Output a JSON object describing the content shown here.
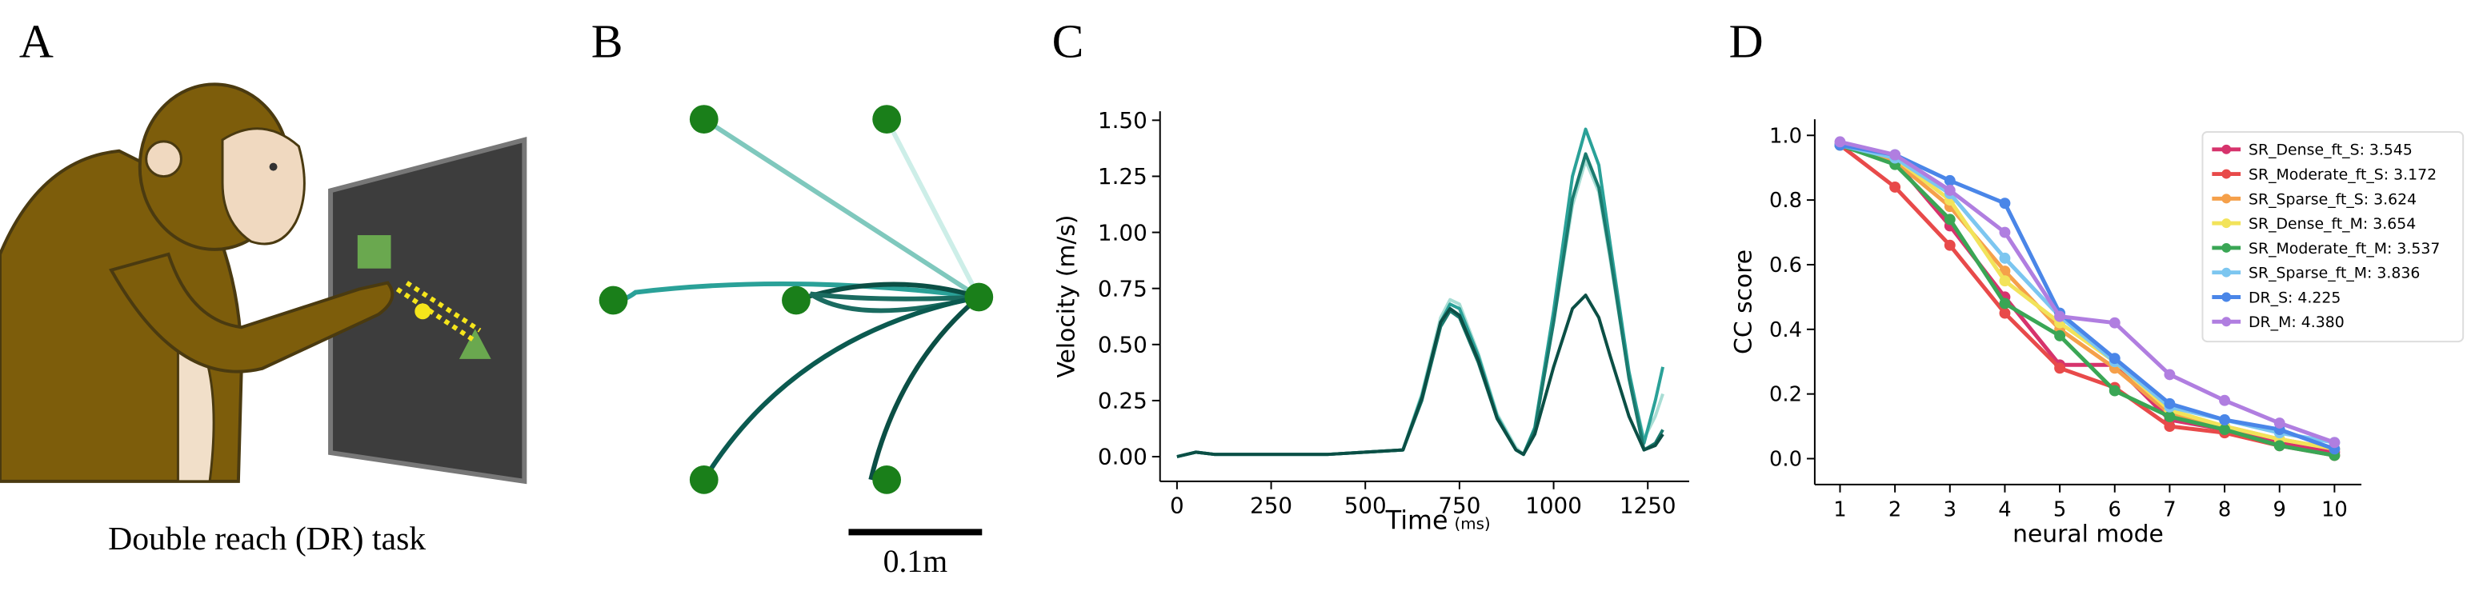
{
  "panel_labels": [
    "A",
    "B",
    "C",
    "D"
  ],
  "panel_a": {
    "caption": "Double reach (DR) task"
  },
  "panel_b": {
    "scale_label": "0.1m"
  },
  "chart_data": [
    {
      "type": "line",
      "xlabel": "Time",
      "xlabel_unit": "(ms)",
      "ylabel": "Velocity (m/s)",
      "x": [
        0,
        50,
        100,
        200,
        300,
        400,
        500,
        600,
        650,
        700,
        725,
        750,
        800,
        850,
        900,
        920,
        950,
        1000,
        1050,
        1085,
        1120,
        1150,
        1200,
        1240,
        1270,
        1290
      ],
      "xlim": [
        -45,
        1360
      ],
      "xticks": [
        0,
        250,
        500,
        750,
        1000,
        1250
      ],
      "ylim": [
        -0.11,
        1.54
      ],
      "yticks": [
        {
          "value": 0,
          "label": "0.00"
        },
        {
          "value": 0.25,
          "label": "0.25"
        },
        {
          "value": 0.5,
          "label": "0.50"
        },
        {
          "value": 0.75,
          "label": "0.75"
        },
        {
          "value": 1,
          "label": "1.00"
        },
        {
          "value": 1.25,
          "label": "1.25"
        },
        {
          "value": 1.5,
          "label": "1.50"
        }
      ],
      "marker": false,
      "series": [
        {
          "color": "#a8ddd4",
          "values": [
            0,
            0.02,
            0.01,
            0.01,
            0.01,
            0.01,
            0.02,
            0.03,
            0.28,
            0.62,
            0.7,
            0.68,
            0.46,
            0.19,
            0.04,
            0.01,
            0.12,
            0.6,
            1.12,
            1.32,
            1.18,
            0.88,
            0.36,
            0.08,
            0.18,
            0.28
          ]
        },
        {
          "color": "#2aa198",
          "values": [
            0,
            0.02,
            0.01,
            0.01,
            0.01,
            0.01,
            0.02,
            0.03,
            0.27,
            0.6,
            0.68,
            0.66,
            0.45,
            0.18,
            0.03,
            0.01,
            0.13,
            0.65,
            1.25,
            1.46,
            1.3,
            0.95,
            0.38,
            0.06,
            0.25,
            0.4
          ]
        },
        {
          "color": "#1a7a6e",
          "values": [
            0,
            0.02,
            0.01,
            0.01,
            0.01,
            0.01,
            0.02,
            0.03,
            0.25,
            0.58,
            0.65,
            0.62,
            0.42,
            0.17,
            0.03,
            0.01,
            0.12,
            0.6,
            1.15,
            1.35,
            1.2,
            0.9,
            0.35,
            0.03,
            0.06,
            0.12
          ]
        },
        {
          "color": "#0b4f45",
          "values": [
            0,
            0.02,
            0.01,
            0.01,
            0.01,
            0.01,
            0.02,
            0.03,
            0.26,
            0.6,
            0.66,
            0.63,
            0.43,
            0.17,
            0.03,
            0.01,
            0.1,
            0.4,
            0.66,
            0.72,
            0.62,
            0.45,
            0.18,
            0.03,
            0.05,
            0.1
          ]
        }
      ]
    },
    {
      "type": "line",
      "xlabel": "neural mode",
      "ylabel": "CC score",
      "x": [
        1,
        2,
        3,
        4,
        5,
        6,
        7,
        8,
        9,
        10
      ],
      "xlim": [
        0.54,
        10.49
      ],
      "xticks": [
        1,
        2,
        3,
        4,
        5,
        6,
        7,
        8,
        9,
        10
      ],
      "ylim": [
        -0.08,
        1.05
      ],
      "yticks": [
        {
          "value": 0,
          "label": "0.0"
        },
        {
          "value": 0.2,
          "label": "0.2"
        },
        {
          "value": 0.4,
          "label": "0.4"
        },
        {
          "value": 0.6,
          "label": "0.6"
        },
        {
          "value": 0.8,
          "label": "0.8"
        },
        {
          "value": 1,
          "label": "1.0"
        }
      ],
      "marker": true,
      "legend": "upper right",
      "series": [
        {
          "name": "SR_Dense_ft_S: 3.545",
          "color": "#d6336c",
          "values": [
            0.97,
            0.92,
            0.72,
            0.5,
            0.29,
            0.29,
            0.12,
            0.09,
            0.05,
            0.02
          ]
        },
        {
          "name": "SR_Moderate_ft_S: 3.172",
          "color": "#e84a4a",
          "values": [
            0.97,
            0.84,
            0.66,
            0.45,
            0.28,
            0.22,
            0.1,
            0.08,
            0.04,
            0.01
          ]
        },
        {
          "name": "SR_Sparse_ft_S: 3.624",
          "color": "#f5a04a",
          "values": [
            0.97,
            0.92,
            0.78,
            0.58,
            0.4,
            0.28,
            0.14,
            0.1,
            0.06,
            0.03
          ]
        },
        {
          "name": "SR_Dense_ft_M: 3.654",
          "color": "#f2e35a",
          "values": [
            0.97,
            0.93,
            0.8,
            0.55,
            0.42,
            0.3,
            0.15,
            0.1,
            0.06,
            0.03
          ]
        },
        {
          "name": "SR_Moderate_ft_M: 3.537",
          "color": "#3aa655",
          "values": [
            0.97,
            0.91,
            0.74,
            0.48,
            0.38,
            0.21,
            0.13,
            0.09,
            0.04,
            0.01
          ]
        },
        {
          "name": "SR_Sparse_ft_M: 3.836",
          "color": "#7cc6f0",
          "values": [
            0.97,
            0.93,
            0.82,
            0.62,
            0.44,
            0.3,
            0.16,
            0.12,
            0.08,
            0.05
          ]
        },
        {
          "name": "DR_S: 4.225",
          "color": "#4a86e8",
          "values": [
            0.97,
            0.94,
            0.86,
            0.79,
            0.45,
            0.31,
            0.17,
            0.12,
            0.09,
            0.03
          ]
        },
        {
          "name": "DR_M: 4.380",
          "color": "#b07ee0",
          "values": [
            0.98,
            0.94,
            0.83,
            0.7,
            0.44,
            0.42,
            0.26,
            0.18,
            0.11,
            0.05
          ]
        }
      ]
    }
  ]
}
